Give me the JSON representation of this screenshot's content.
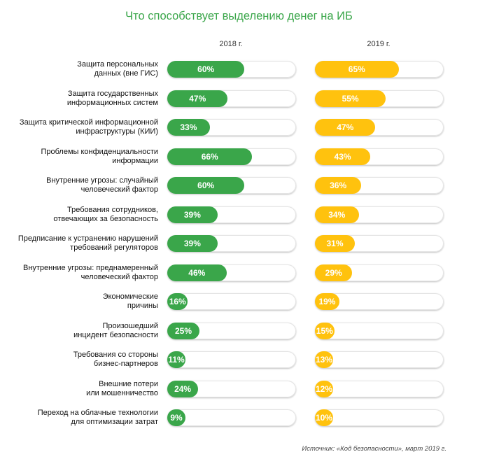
{
  "title": "Что способствует выделению денег на ИБ",
  "source": "Источник: «Код безопасности», март 2019 г.",
  "chart_data": {
    "type": "bar",
    "orientation": "horizontal",
    "title": "Что способствует выделению денег на ИБ",
    "xlim": [
      0,
      100
    ],
    "categories": [
      [
        "Защита персональных",
        "данных (вне ГИС)"
      ],
      [
        "Защита государственных",
        "информационных систем"
      ],
      [
        "Защита критической информационной",
        "инфраструктуры (КИИ)"
      ],
      [
        "Проблемы конфиденциальности",
        "информации"
      ],
      [
        "Внутренние угрозы: случайный",
        "человеческий фактор"
      ],
      [
        "Требования сотрудников,",
        "отвечающих за безопасность"
      ],
      [
        "Предписание к устранению нарушений",
        "требований регуляторов"
      ],
      [
        "Внутренние угрозы: преднамеренный",
        "человеческий фактор"
      ],
      [
        "Экономические",
        "причины"
      ],
      [
        "Произошедший",
        "инцидент безопасности"
      ],
      [
        "Требования со стороны",
        "бизнес-партнеров"
      ],
      [
        "Внешние потери",
        "или мошенничество"
      ],
      [
        "Переход на облачные технологии",
        "для оптимизации затрат"
      ]
    ],
    "series": [
      {
        "name": "2018 г.",
        "color": "#3aa64a",
        "values": [
          60,
          47,
          33,
          66,
          60,
          39,
          39,
          46,
          16,
          25,
          11,
          24,
          9
        ]
      },
      {
        "name": "2019 г.",
        "color": "#ffc20e",
        "values": [
          65,
          55,
          47,
          43,
          36,
          34,
          31,
          29,
          19,
          15,
          13,
          12,
          10
        ]
      }
    ]
  }
}
